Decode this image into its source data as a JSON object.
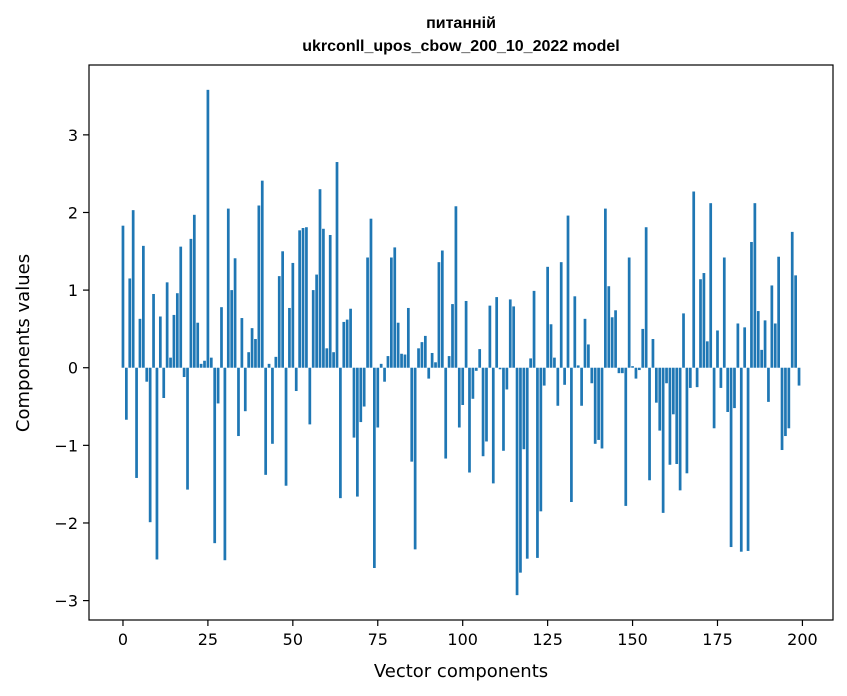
{
  "chart_data": {
    "type": "bar",
    "title_line1": "питанній",
    "title_line2": "ukrconll_upos_cbow_200_10_2022 model",
    "xlabel": "Vector components",
    "ylabel": "Components values",
    "xlim": [
      -10,
      209
    ],
    "ylim": [
      -3.25,
      3.9
    ],
    "xticks": [
      0,
      25,
      50,
      75,
      100,
      125,
      150,
      175,
      200
    ],
    "xtick_labels": [
      "0",
      "25",
      "50",
      "75",
      "100",
      "125",
      "150",
      "175",
      "200"
    ],
    "yticks": [
      -3,
      -2,
      -1,
      0,
      1,
      2,
      3
    ],
    "ytick_labels": [
      "−3",
      "−2",
      "−1",
      "0",
      "1",
      "2",
      "3"
    ],
    "bar_color": "#1f77b4",
    "grid": false,
    "values": [
      1.83,
      -0.67,
      1.15,
      2.03,
      -1.42,
      0.63,
      1.57,
      -0.18,
      -1.99,
      0.95,
      -2.47,
      0.66,
      -0.39,
      1.1,
      0.13,
      0.68,
      0.96,
      1.56,
      -0.12,
      -1.57,
      1.66,
      1.97,
      0.58,
      0.05,
      0.09,
      3.58,
      0.13,
      -2.26,
      -0.46,
      0.78,
      -2.48,
      2.05,
      1.0,
      1.41,
      -0.88,
      0.64,
      -0.56,
      0.2,
      0.51,
      0.37,
      2.09,
      2.41,
      -1.38,
      0.05,
      -0.98,
      0.14,
      1.18,
      1.5,
      -1.52,
      0.77,
      1.35,
      -0.3,
      1.77,
      1.8,
      1.81,
      -0.73,
      1.0,
      1.2,
      2.3,
      1.79,
      0.25,
      1.71,
      0.2,
      2.65,
      -1.68,
      0.59,
      0.62,
      0.76,
      -0.9,
      -1.66,
      -0.7,
      -0.5,
      1.42,
      1.92,
      -2.58,
      -0.77,
      0.05,
      -0.18,
      0.15,
      1.42,
      1.55,
      0.58,
      0.18,
      0.17,
      0.77,
      -1.21,
      -2.34,
      0.25,
      0.33,
      0.41,
      -0.14,
      0.19,
      0.07,
      1.36,
      1.51,
      -1.17,
      0.15,
      0.82,
      2.08,
      -0.77,
      -0.48,
      0.86,
      -1.35,
      -0.4,
      -0.04,
      0.24,
      -1.14,
      -0.95,
      0.8,
      -1.49,
      0.91,
      -0.02,
      -1.07,
      -0.28,
      0.88,
      0.79,
      -2.93,
      -2.64,
      -1.05,
      -2.46,
      0.12,
      0.99,
      -2.45,
      -1.85,
      -0.23,
      1.3,
      0.56,
      0.13,
      -0.49,
      1.36,
      -0.22,
      1.96,
      -1.73,
      0.92,
      0.03,
      -0.49,
      0.63,
      0.3,
      -0.2,
      -0.98,
      -0.93,
      -1.04,
      2.05,
      1.05,
      0.65,
      0.74,
      -0.07,
      -0.07,
      -1.78,
      1.42,
      0.02,
      -0.14,
      -0.03,
      0.5,
      1.81,
      -1.45,
      0.37,
      -0.45,
      -0.81,
      -1.87,
      -0.2,
      -1.25,
      -0.6,
      -1.24,
      -1.58,
      0.7,
      -1.36,
      -0.26,
      2.27,
      -0.25,
      1.14,
      1.22,
      0.34,
      2.12,
      -0.78,
      0.48,
      -0.26,
      1.42,
      -0.57,
      -2.31,
      -0.52,
      0.57,
      -2.37,
      0.52,
      -2.36,
      1.62,
      2.12,
      0.73,
      0.23,
      0.61,
      -0.44,
      1.06,
      0.57,
      1.43,
      -1.06,
      -0.88,
      -0.78,
      1.75,
      1.19,
      -0.23
    ]
  }
}
